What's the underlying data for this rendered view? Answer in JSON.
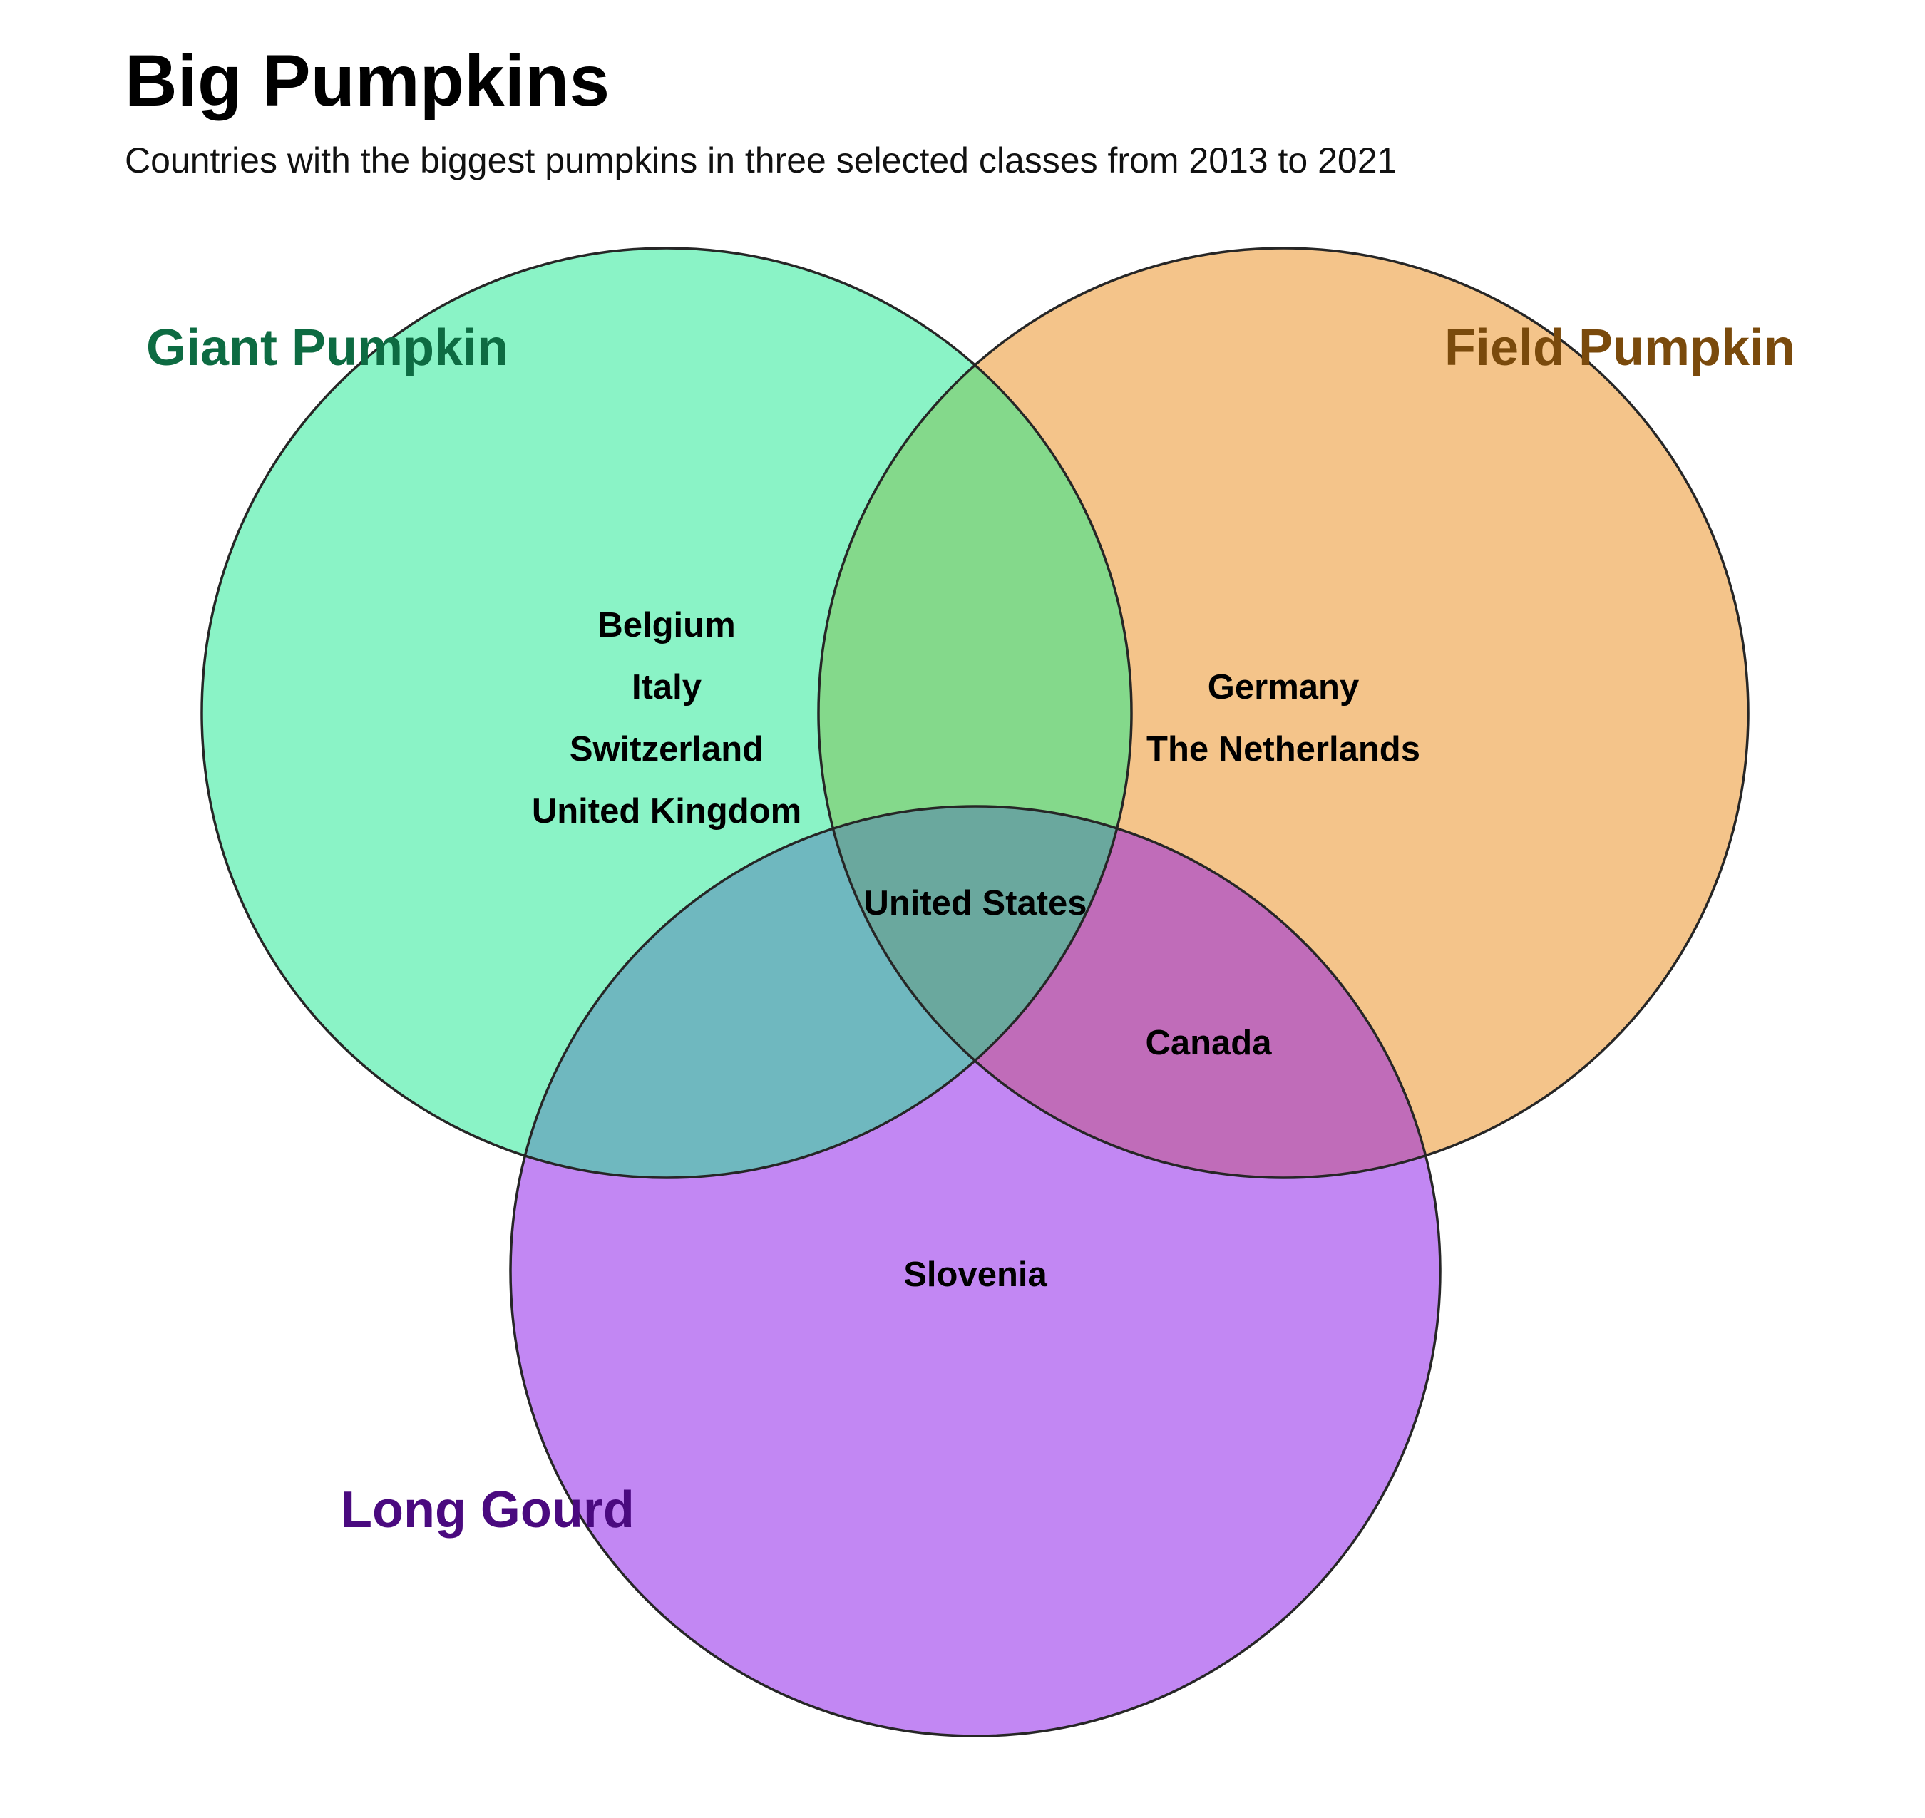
{
  "title": "Big Pumpkins",
  "subtitle": "Countries with the biggest pumpkins in three selected classes from 2013 to 2021",
  "sets": [
    {
      "id": "giant",
      "label": "Giant Pumpkin",
      "fill": "#8af3c6",
      "label_color": "#0d6b42"
    },
    {
      "id": "field",
      "label": "Field Pumpkin",
      "fill": "#f4c48a",
      "label_color": "#7a4a0c"
    },
    {
      "id": "gourd",
      "label": "Long Gourd",
      "fill": "#c287f3",
      "label_color": "#4a0a7f"
    }
  ],
  "overlap_colors": {
    "giant_field": "#84d98b",
    "giant_gourd": "#6fb8bf",
    "field_gourd": "#c06cb9",
    "all_three": "#6aa89e"
  },
  "regions": {
    "giant_only": [
      "Belgium",
      "Italy",
      "Switzerland",
      "United Kingdom"
    ],
    "field_only": [
      "Germany",
      "The Netherlands"
    ],
    "gourd_only": [
      "Slovenia"
    ],
    "field_gourd": [
      "Canada"
    ],
    "all_three": [
      "United States"
    ]
  }
}
